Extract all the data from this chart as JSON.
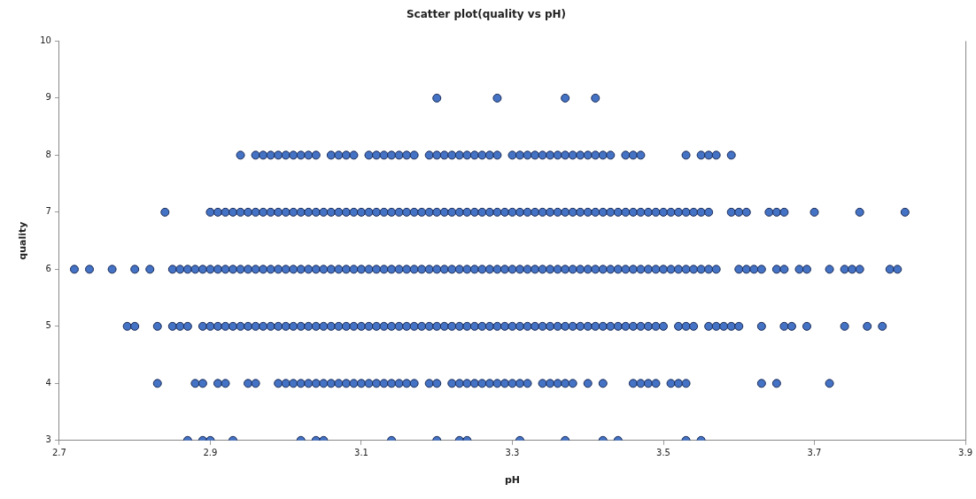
{
  "chart_data": {
    "type": "scatter",
    "title": "Scatter plot(quality vs pH)",
    "xlabel": "pH",
    "ylabel": "quality",
    "xlim": [
      2.7,
      3.9
    ],
    "ylim": [
      3,
      10
    ],
    "xticks": [
      2.7,
      2.9,
      3.1,
      3.3,
      3.5,
      3.7,
      3.9
    ],
    "yticks": [
      3,
      4,
      5,
      6,
      7,
      8,
      9,
      10
    ],
    "grid": false,
    "marker": "circle",
    "series": [
      {
        "color": "#4472c4",
        "x": [
          2.87,
          2.89,
          2.9,
          2.93,
          3.02,
          3.04,
          3.05,
          3.14,
          3.2,
          3.23,
          3.24,
          3.31,
          3.37,
          3.42,
          3.44,
          3.53,
          3.55
        ],
        "values": [
          3,
          3,
          3,
          3,
          3,
          3,
          3,
          3,
          3,
          3,
          3,
          3,
          3,
          3,
          3,
          3,
          3
        ]
      },
      {
        "color": "#4472c4",
        "x": [
          2.83,
          2.88,
          2.89,
          2.91,
          2.92,
          2.95,
          2.96,
          2.99,
          3.0,
          3.01,
          3.02,
          3.03,
          3.04,
          3.05,
          3.06,
          3.07,
          3.08,
          3.09,
          3.1,
          3.11,
          3.12,
          3.13,
          3.14,
          3.15,
          3.16,
          3.17,
          3.19,
          3.2,
          3.22,
          3.23,
          3.24,
          3.25,
          3.26,
          3.27,
          3.28,
          3.29,
          3.3,
          3.31,
          3.32,
          3.34,
          3.35,
          3.36,
          3.37,
          3.38,
          3.4,
          3.42,
          3.46,
          3.47,
          3.48,
          3.49,
          3.51,
          3.52,
          3.53,
          3.63,
          3.65,
          3.72
        ],
        "values": [
          4,
          4,
          4,
          4,
          4,
          4,
          4,
          4,
          4,
          4,
          4,
          4,
          4,
          4,
          4,
          4,
          4,
          4,
          4,
          4,
          4,
          4,
          4,
          4,
          4,
          4,
          4,
          4,
          4,
          4,
          4,
          4,
          4,
          4,
          4,
          4,
          4,
          4,
          4,
          4,
          4,
          4,
          4,
          4,
          4,
          4,
          4,
          4,
          4,
          4,
          4,
          4,
          4,
          4,
          4,
          4
        ]
      },
      {
        "color": "#4472c4",
        "x": [
          2.79,
          2.8,
          2.83,
          2.85,
          2.86,
          2.87,
          2.89,
          2.9,
          2.91,
          2.92,
          2.93,
          2.94,
          2.95,
          2.96,
          2.97,
          2.98,
          2.99,
          3.0,
          3.01,
          3.02,
          3.03,
          3.04,
          3.05,
          3.06,
          3.07,
          3.08,
          3.09,
          3.1,
          3.11,
          3.12,
          3.13,
          3.14,
          3.15,
          3.16,
          3.17,
          3.18,
          3.19,
          3.2,
          3.21,
          3.22,
          3.23,
          3.24,
          3.25,
          3.26,
          3.27,
          3.28,
          3.29,
          3.3,
          3.31,
          3.32,
          3.33,
          3.34,
          3.35,
          3.36,
          3.37,
          3.38,
          3.39,
          3.4,
          3.41,
          3.42,
          3.43,
          3.44,
          3.45,
          3.46,
          3.47,
          3.48,
          3.49,
          3.5,
          3.52,
          3.53,
          3.54,
          3.56,
          3.57,
          3.58,
          3.59,
          3.6,
          3.63,
          3.66,
          3.67,
          3.69,
          3.74,
          3.77,
          3.79
        ],
        "values": [
          5,
          5,
          5,
          5,
          5,
          5,
          5,
          5,
          5,
          5,
          5,
          5,
          5,
          5,
          5,
          5,
          5,
          5,
          5,
          5,
          5,
          5,
          5,
          5,
          5,
          5,
          5,
          5,
          5,
          5,
          5,
          5,
          5,
          5,
          5,
          5,
          5,
          5,
          5,
          5,
          5,
          5,
          5,
          5,
          5,
          5,
          5,
          5,
          5,
          5,
          5,
          5,
          5,
          5,
          5,
          5,
          5,
          5,
          5,
          5,
          5,
          5,
          5,
          5,
          5,
          5,
          5,
          5,
          5,
          5,
          5,
          5,
          5,
          5,
          5,
          5,
          5,
          5,
          5,
          5,
          5,
          5,
          5
        ]
      },
      {
        "color": "#4472c4",
        "x": [
          2.72,
          2.74,
          2.77,
          2.8,
          2.82,
          2.85,
          2.86,
          2.87,
          2.88,
          2.89,
          2.9,
          2.91,
          2.92,
          2.93,
          2.94,
          2.95,
          2.96,
          2.97,
          2.98,
          2.99,
          3.0,
          3.01,
          3.02,
          3.03,
          3.04,
          3.05,
          3.06,
          3.07,
          3.08,
          3.09,
          3.1,
          3.11,
          3.12,
          3.13,
          3.14,
          3.15,
          3.16,
          3.17,
          3.18,
          3.19,
          3.2,
          3.21,
          3.22,
          3.23,
          3.24,
          3.25,
          3.26,
          3.27,
          3.28,
          3.29,
          3.3,
          3.31,
          3.32,
          3.33,
          3.34,
          3.35,
          3.36,
          3.37,
          3.38,
          3.39,
          3.4,
          3.41,
          3.42,
          3.43,
          3.44,
          3.45,
          3.46,
          3.47,
          3.48,
          3.49,
          3.5,
          3.51,
          3.52,
          3.53,
          3.54,
          3.55,
          3.56,
          3.57,
          3.6,
          3.61,
          3.62,
          3.63,
          3.65,
          3.66,
          3.68,
          3.69,
          3.72,
          3.74,
          3.75,
          3.76,
          3.8,
          3.81
        ],
        "values": [
          6,
          6,
          6,
          6,
          6,
          6,
          6,
          6,
          6,
          6,
          6,
          6,
          6,
          6,
          6,
          6,
          6,
          6,
          6,
          6,
          6,
          6,
          6,
          6,
          6,
          6,
          6,
          6,
          6,
          6,
          6,
          6,
          6,
          6,
          6,
          6,
          6,
          6,
          6,
          6,
          6,
          6,
          6,
          6,
          6,
          6,
          6,
          6,
          6,
          6,
          6,
          6,
          6,
          6,
          6,
          6,
          6,
          6,
          6,
          6,
          6,
          6,
          6,
          6,
          6,
          6,
          6,
          6,
          6,
          6,
          6,
          6,
          6,
          6,
          6,
          6,
          6,
          6,
          6,
          6,
          6,
          6,
          6,
          6,
          6,
          6,
          6,
          6,
          6,
          6,
          6,
          6
        ]
      },
      {
        "color": "#4472c4",
        "x": [
          2.84,
          2.9,
          2.91,
          2.92,
          2.93,
          2.94,
          2.95,
          2.96,
          2.97,
          2.98,
          2.99,
          3.0,
          3.01,
          3.02,
          3.03,
          3.04,
          3.05,
          3.06,
          3.07,
          3.08,
          3.09,
          3.1,
          3.11,
          3.12,
          3.13,
          3.14,
          3.15,
          3.16,
          3.17,
          3.18,
          3.19,
          3.2,
          3.21,
          3.22,
          3.23,
          3.24,
          3.25,
          3.26,
          3.27,
          3.28,
          3.29,
          3.3,
          3.31,
          3.32,
          3.33,
          3.34,
          3.35,
          3.36,
          3.37,
          3.38,
          3.39,
          3.4,
          3.41,
          3.42,
          3.43,
          3.44,
          3.45,
          3.46,
          3.47,
          3.48,
          3.49,
          3.5,
          3.51,
          3.52,
          3.53,
          3.54,
          3.55,
          3.56,
          3.59,
          3.6,
          3.61,
          3.64,
          3.65,
          3.66,
          3.7,
          3.76,
          3.82
        ],
        "values": [
          7,
          7,
          7,
          7,
          7,
          7,
          7,
          7,
          7,
          7,
          7,
          7,
          7,
          7,
          7,
          7,
          7,
          7,
          7,
          7,
          7,
          7,
          7,
          7,
          7,
          7,
          7,
          7,
          7,
          7,
          7,
          7,
          7,
          7,
          7,
          7,
          7,
          7,
          7,
          7,
          7,
          7,
          7,
          7,
          7,
          7,
          7,
          7,
          7,
          7,
          7,
          7,
          7,
          7,
          7,
          7,
          7,
          7,
          7,
          7,
          7,
          7,
          7,
          7,
          7,
          7,
          7,
          7,
          7,
          7,
          7,
          7,
          7,
          7,
          7,
          7,
          7
        ]
      },
      {
        "color": "#4472c4",
        "x": [
          2.94,
          2.96,
          2.97,
          2.98,
          2.99,
          3.0,
          3.01,
          3.02,
          3.03,
          3.04,
          3.06,
          3.07,
          3.08,
          3.09,
          3.11,
          3.12,
          3.13,
          3.14,
          3.15,
          3.16,
          3.17,
          3.19,
          3.2,
          3.21,
          3.22,
          3.23,
          3.24,
          3.25,
          3.26,
          3.27,
          3.28,
          3.3,
          3.31,
          3.32,
          3.33,
          3.34,
          3.35,
          3.36,
          3.37,
          3.38,
          3.39,
          3.4,
          3.41,
          3.42,
          3.43,
          3.45,
          3.46,
          3.47,
          3.53,
          3.55,
          3.56,
          3.57,
          3.59
        ],
        "values": [
          8,
          8,
          8,
          8,
          8,
          8,
          8,
          8,
          8,
          8,
          8,
          8,
          8,
          8,
          8,
          8,
          8,
          8,
          8,
          8,
          8,
          8,
          8,
          8,
          8,
          8,
          8,
          8,
          8,
          8,
          8,
          8,
          8,
          8,
          8,
          8,
          8,
          8,
          8,
          8,
          8,
          8,
          8,
          8,
          8,
          8,
          8,
          8,
          8,
          8,
          8,
          8,
          8
        ]
      },
      {
        "color": "#4472c4",
        "x": [
          3.2,
          3.28,
          3.37,
          3.41
        ],
        "values": [
          9,
          9,
          9,
          9
        ]
      }
    ]
  }
}
